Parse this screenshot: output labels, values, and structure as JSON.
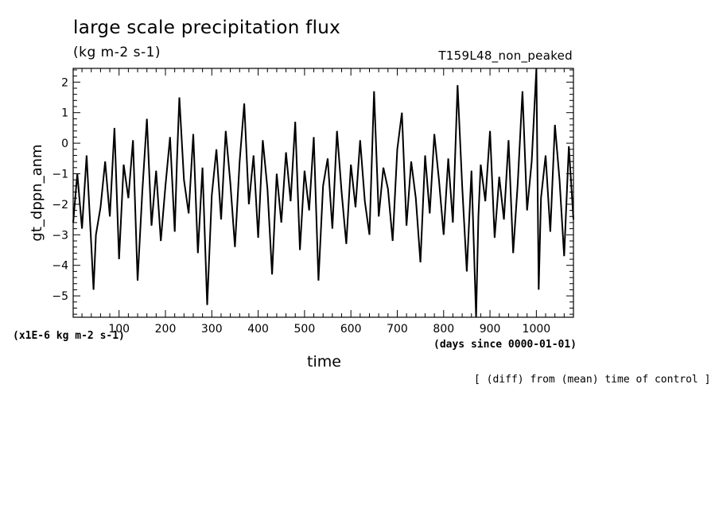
{
  "chart_data": {
    "type": "line",
    "title": "large scale precipitation flux",
    "subtitle": "(kg m-2 s-1)",
    "run_label": "T159L48_non_peaked",
    "ylabel": "gt_dppn_anm",
    "xlabel": "time",
    "x_units": "(days since 0000-01-01)",
    "y_scale_note": "(x1E-6 kg m-2 s-1)",
    "footnote": "[ (diff) from (mean) time of control ]",
    "xlim": [
      1,
      1080
    ],
    "ylim": [
      -5.7,
      2.45
    ],
    "x_ticks": [
      "100",
      "200",
      "300",
      "400",
      "500",
      "600",
      "700",
      "800",
      "900",
      "1000"
    ],
    "y_ticks": [
      "2",
      "1",
      "0",
      "-1",
      "-2",
      "-3",
      "-4",
      "-5"
    ],
    "grid": false,
    "series": [
      {
        "color": "#000000",
        "x": [
          1,
          10,
          20,
          30,
          40,
          45,
          50,
          60,
          70,
          80,
          90,
          100,
          110,
          120,
          130,
          140,
          150,
          160,
          170,
          180,
          190,
          200,
          210,
          220,
          225,
          230,
          240,
          250,
          260,
          270,
          280,
          290,
          300,
          310,
          320,
          330,
          340,
          350,
          360,
          370,
          380,
          390,
          400,
          410,
          420,
          430,
          440,
          450,
          460,
          470,
          480,
          490,
          500,
          510,
          520,
          530,
          540,
          550,
          560,
          570,
          580,
          590,
          600,
          610,
          620,
          630,
          640,
          650,
          660,
          670,
          680,
          690,
          700,
          710,
          720,
          730,
          740,
          750,
          760,
          770,
          780,
          790,
          800,
          810,
          820,
          830,
          840,
          850,
          860,
          870,
          875,
          880,
          890,
          900,
          910,
          920,
          930,
          940,
          950,
          960,
          970,
          980,
          990,
          1000,
          1005,
          1010,
          1020,
          1030,
          1040,
          1050,
          1060,
          1070,
          1080
        ],
        "y": [
          -2.6,
          -1.0,
          -2.8,
          -0.4,
          -3.3,
          -4.8,
          -3.0,
          -2.1,
          -0.6,
          -2.4,
          0.5,
          -3.8,
          -0.7,
          -1.8,
          0.1,
          -4.5,
          -1.6,
          0.8,
          -2.7,
          -0.9,
          -3.2,
          -1.4,
          0.2,
          -2.9,
          -0.5,
          1.5,
          -1.2,
          -2.3,
          0.3,
          -3.6,
          -0.8,
          -5.3,
          -1.7,
          -0.2,
          -2.5,
          0.4,
          -1.3,
          -3.4,
          -0.6,
          1.3,
          -2.0,
          -0.4,
          -3.1,
          0.1,
          -1.5,
          -4.3,
          -1.0,
          -2.6,
          -0.3,
          -1.9,
          0.7,
          -3.5,
          -0.9,
          -2.2,
          0.2,
          -4.5,
          -1.4,
          -0.5,
          -2.8,
          0.4,
          -1.6,
          -3.3,
          -0.7,
          -2.1,
          0.1,
          -1.9,
          -3.0,
          1.7,
          -2.4,
          -0.8,
          -1.5,
          -3.2,
          -0.2,
          1.0,
          -2.7,
          -0.6,
          -1.8,
          -3.9,
          -0.4,
          -2.3,
          0.3,
          -1.2,
          -3.0,
          -0.5,
          -2.6,
          1.9,
          -1.4,
          -4.2,
          -0.9,
          -5.7,
          -2.4,
          -0.7,
          -1.9,
          0.4,
          -3.1,
          -1.1,
          -2.5,
          0.1,
          -3.6,
          -1.3,
          1.7,
          -2.2,
          -0.6,
          2.45,
          -4.8,
          -1.8,
          -0.4,
          -2.9,
          0.6,
          -1.2,
          -3.7,
          -0.1,
          -2.5
        ]
      }
    ]
  }
}
